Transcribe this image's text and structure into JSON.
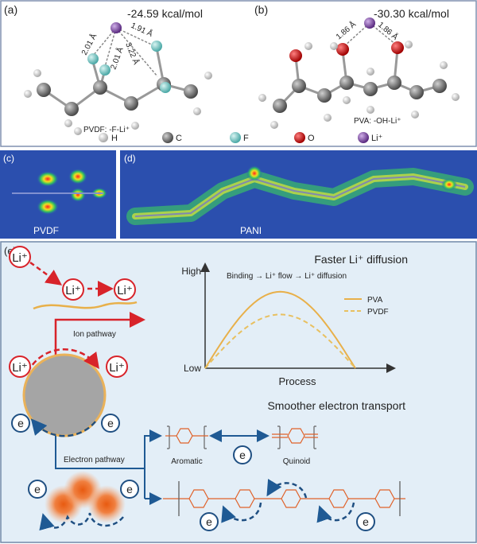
{
  "panel_a": {
    "label": "(a)",
    "energy": "-24.59 kcal/mol",
    "distances": [
      "2.01 Å",
      "2.01 Å",
      "1.91 Å",
      "3.22 Å"
    ],
    "caption": "PVDF: -F-Li⁺"
  },
  "panel_b": {
    "label": "(b)",
    "energy": "-30.30 kcal/mol",
    "distances": [
      "1.86 Å",
      "1.86 Å"
    ],
    "caption": "PVA: -OH-Li⁺"
  },
  "atom_legend": [
    {
      "symbol": "H",
      "color": "#e8e8e8"
    },
    {
      "symbol": "C",
      "color": "#666666"
    },
    {
      "symbol": "F",
      "color": "#5fc4c0"
    },
    {
      "symbol": "O",
      "color": "#d01010"
    },
    {
      "symbol": "Li⁺",
      "color": "#8a55b0"
    }
  ],
  "panel_c": {
    "label": "(c)",
    "name": "PVDF"
  },
  "panel_d": {
    "label": "(d)",
    "name": "PANI"
  },
  "panel_e": {
    "label": "(e)",
    "li_label": "Li⁺",
    "e_label": "e",
    "ion_pathway": "Ion pathway",
    "electron_pathway": "Electron pathway",
    "faster_title": "Faster Li⁺ diffusion",
    "sequence": "Binding → Li⁺ flow → Li⁺ diffusion",
    "smoother_title": "Smoother electron transport",
    "aromatic": "Aromatic",
    "quinoid": "Quinoid",
    "colors": {
      "ion": "#d8232a",
      "electron": "#1f4f82",
      "polymer": "#e8b04a",
      "panani": "#e0622a",
      "background": "#e3eef7"
    }
  },
  "chart_data": {
    "type": "line",
    "title": "Faster Li⁺ diffusion",
    "subtitle": "Binding → Li⁺ flow → Li⁺ diffusion",
    "xlabel": "Process",
    "ylabel_ticks": [
      "Low",
      "High"
    ],
    "legend_placement": "top-right",
    "series": [
      {
        "name": "PVA",
        "style": "solid",
        "color": "#e8b04a",
        "peak_relative": 0.74
      },
      {
        "name": "PVDF",
        "style": "dashed",
        "color": "#e8c060",
        "peak_relative": 0.52
      }
    ]
  }
}
